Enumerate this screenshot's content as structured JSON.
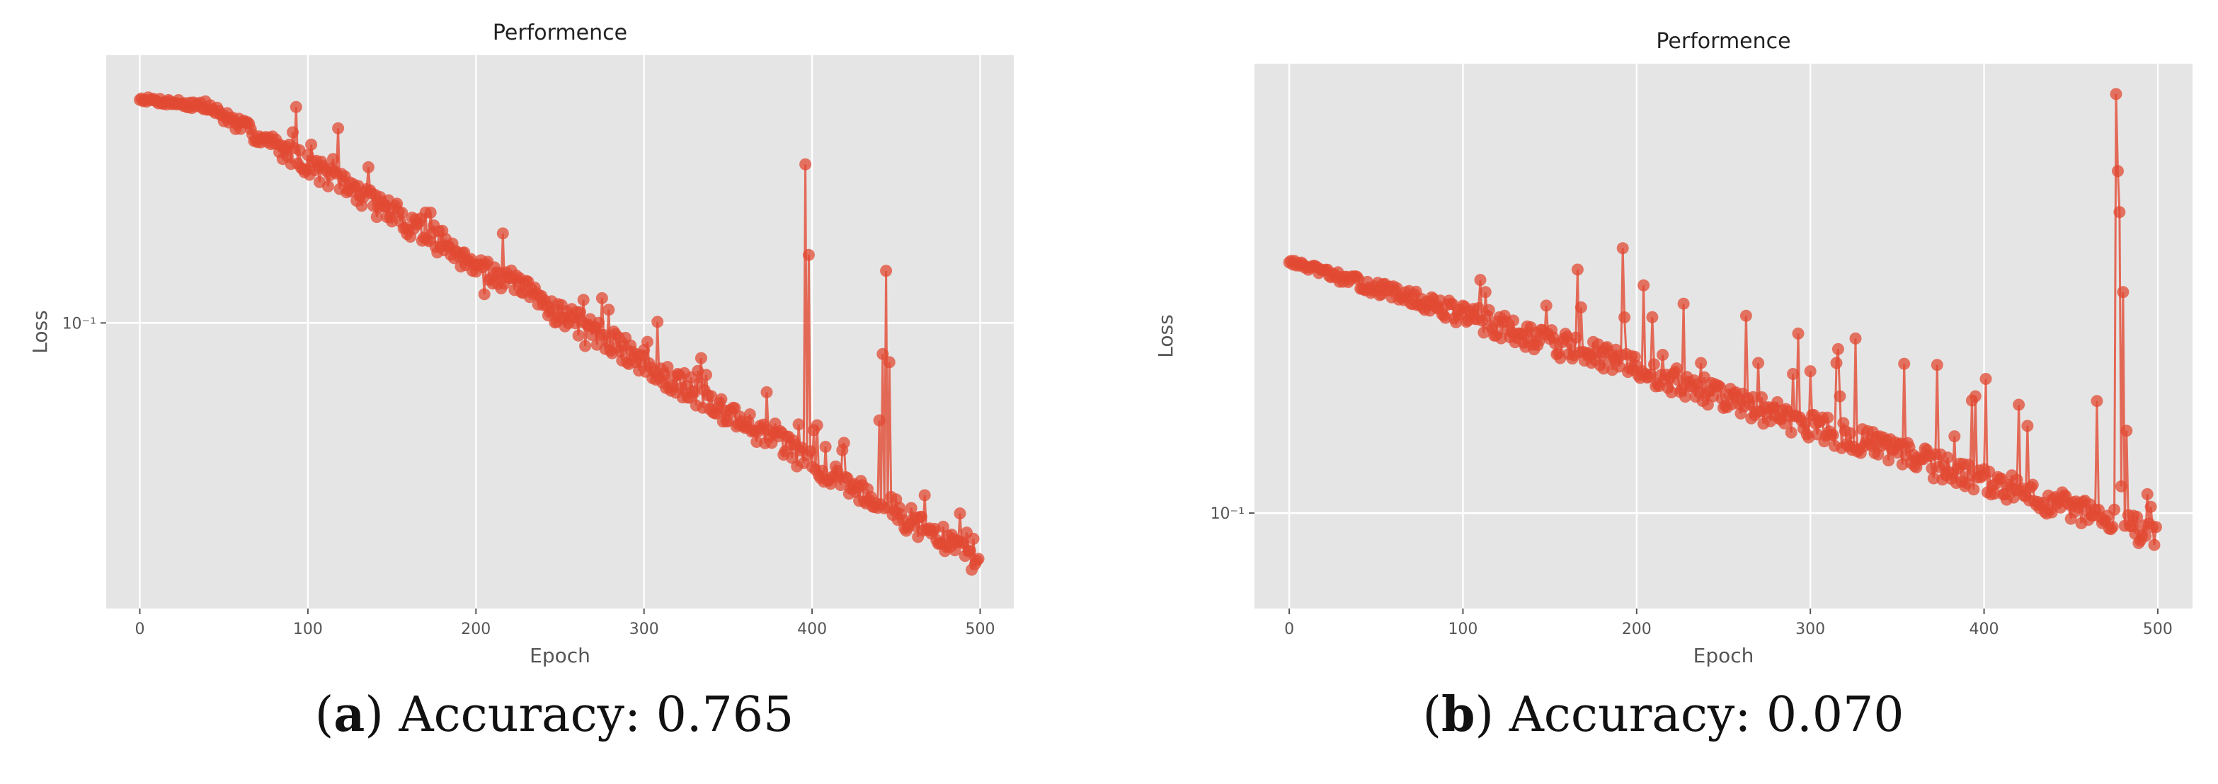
{
  "style": {
    "plot_bg": "#e5e5e5",
    "grid": "#ffffff",
    "series_color": "#e24a33"
  },
  "panels": [
    {
      "caption_letter": "a",
      "caption_text": "Accuracy: 0.765"
    },
    {
      "caption_letter": "b",
      "caption_text": "Accuracy: 0.070"
    }
  ],
  "chart_data": [
    {
      "type": "line",
      "title": "Performence",
      "xlabel": "Epoch",
      "ylabel": "Loss",
      "y_scale": "log",
      "xlim": [
        -20,
        520
      ],
      "ylim": [
        0.0465,
        0.205
      ],
      "x_ticks": [
        0,
        100,
        200,
        300,
        400,
        500
      ],
      "y_ticks": [
        {
          "value": 0.1,
          "label": "10⁻¹"
        }
      ],
      "grid": true,
      "markers": true,
      "series": [
        {
          "n": 500,
          "start": 0.182,
          "end": 0.052,
          "noise": 0.03,
          "plateau": 40,
          "seed": 7,
          "spikes": [
            [
              205,
              0.108
            ],
            [
              265,
              0.094
            ],
            [
              268,
              0.101
            ],
            [
              295,
              0.09
            ],
            [
              297,
              0.088
            ],
            [
              334,
              0.091
            ],
            [
              337,
              0.087
            ],
            [
              396,
              0.153
            ],
            [
              398,
              0.12
            ],
            [
              401,
              0.075
            ],
            [
              403,
              0.076
            ],
            [
              440,
              0.077
            ],
            [
              442,
              0.092
            ],
            [
              444,
              0.115
            ],
            [
              446,
              0.09
            ],
            [
              467,
              0.063
            ],
            [
              488,
              0.06
            ],
            [
              492,
              0.057
            ]
          ]
        }
      ]
    },
    {
      "type": "line",
      "title": "Performence",
      "xlabel": "Epoch",
      "ylabel": "Loss",
      "y_scale": "log",
      "xlim": [
        -20,
        520
      ],
      "ylim": [
        0.0905,
        0.16
      ],
      "x_ticks": [
        0,
        100,
        200,
        300,
        400,
        500
      ],
      "y_ticks": [
        {
          "value": 0.1,
          "label": "10⁻¹"
        }
      ],
      "grid": true,
      "markers": true,
      "series": [
        {
          "n": 500,
          "start": 0.13,
          "end": 0.097,
          "noise": 0.012,
          "plateau": 30,
          "seed": 13,
          "spikes": [
            [
              113,
              0.126
            ],
            [
              166,
              0.129
            ],
            [
              168,
              0.124
            ],
            [
              215,
              0.118
            ],
            [
              237,
              0.117
            ],
            [
              270,
              0.117
            ],
            [
              300,
              0.116
            ],
            [
              315,
              0.117
            ],
            [
              317,
              0.113
            ],
            [
              395,
              0.113
            ],
            [
              420,
              0.112
            ],
            [
              476,
              0.155
            ],
            [
              477,
              0.143
            ],
            [
              478,
              0.137
            ],
            [
              480,
              0.126
            ],
            [
              482,
              0.109
            ],
            [
              494,
              0.102
            ]
          ]
        }
      ]
    }
  ]
}
